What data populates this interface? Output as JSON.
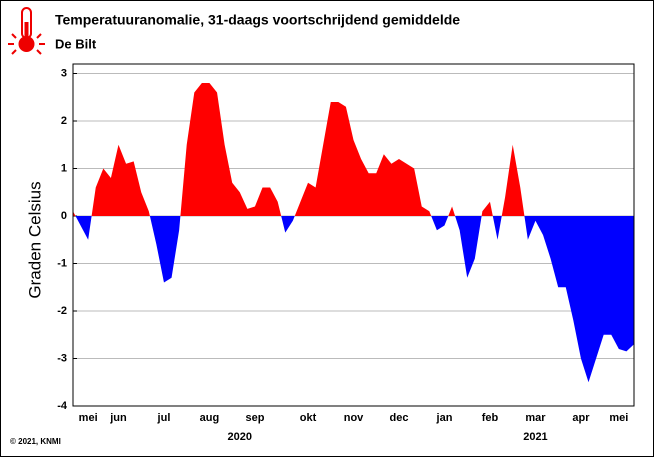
{
  "chart_data": {
    "type": "area",
    "title": "Temperatuuranomalie, 31-daags voortschrijdend gemiddelde",
    "subtitle": "De Bilt",
    "y_label": "Graden Celsius",
    "footer": "© 2021, KNMI",
    "categories": [
      null,
      null,
      "mei",
      null,
      null,
      null,
      "jun",
      null,
      null,
      null,
      null,
      null,
      "jul",
      null,
      null,
      null,
      null,
      null,
      "aug",
      null,
      null,
      null,
      null,
      null,
      "sep",
      null,
      null,
      null,
      null,
      null,
      null,
      "okt",
      null,
      null,
      null,
      null,
      null,
      "nov",
      null,
      null,
      null,
      null,
      null,
      "dec",
      null,
      null,
      null,
      null,
      null,
      "jan",
      null,
      null,
      null,
      null,
      null,
      "feb",
      null,
      null,
      null,
      null,
      null,
      "mar",
      null,
      null,
      null,
      null,
      null,
      "apr",
      null,
      null,
      null,
      null,
      "mei",
      null,
      null
    ],
    "year_labels": [
      {
        "index": 22,
        "label": "2020"
      },
      {
        "index": 61,
        "label": "2021"
      }
    ],
    "values": [
      0.1,
      -0.2,
      -0.5,
      0.6,
      1.0,
      0.8,
      1.5,
      1.1,
      1.15,
      0.5,
      0.1,
      -0.6,
      -1.4,
      -1.3,
      -0.3,
      1.5,
      2.6,
      2.8,
      2.8,
      2.6,
      1.5,
      0.7,
      0.5,
      0.15,
      0.2,
      0.6,
      0.6,
      0.3,
      -0.35,
      -0.1,
      0.3,
      0.7,
      0.6,
      1.5,
      2.4,
      2.4,
      2.3,
      1.6,
      1.2,
      0.9,
      0.9,
      1.3,
      1.1,
      1.2,
      1.1,
      1.0,
      0.2,
      0.1,
      -0.3,
      -0.2,
      0.2,
      -0.3,
      -1.3,
      -0.9,
      0.1,
      0.3,
      -0.5,
      0.4,
      1.5,
      0.6,
      -0.5,
      -0.1,
      -0.4,
      -0.9,
      -1.5,
      -1.5,
      -2.2,
      -3.0,
      -3.5,
      -3.0,
      -2.5,
      -2.5,
      -2.8,
      -2.85,
      -2.7
    ],
    "positive_color": "#ff0000",
    "negative_color": "#0000ff",
    "ylim": [
      -4,
      3.2
    ],
    "yticks": [
      -4,
      -3,
      -2,
      -1,
      0,
      1,
      2,
      3
    ],
    "grid": true
  }
}
